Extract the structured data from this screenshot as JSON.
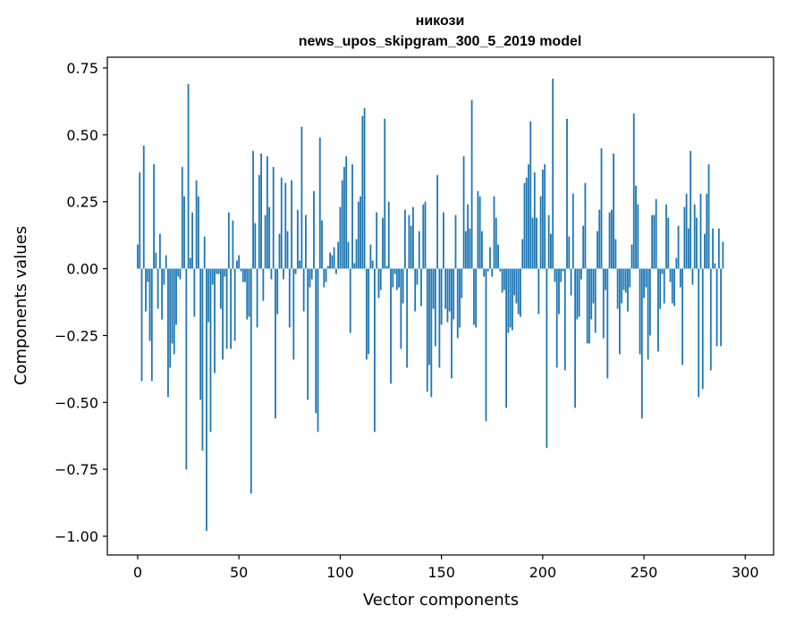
{
  "chart_data": {
    "type": "bar",
    "title": "никози",
    "subtitle": "news_upos_skipgram_300_5_2019 model",
    "xlabel": "Vector components",
    "ylabel": "Components values",
    "xlim": [
      -15,
      314
    ],
    "ylim": [
      -1.07,
      0.79
    ],
    "xticks": [
      0,
      50,
      100,
      150,
      200,
      250,
      300
    ],
    "xtick_labels": [
      "0",
      "50",
      "100",
      "150",
      "200",
      "250",
      "300"
    ],
    "yticks": [
      -1.0,
      -0.75,
      -0.5,
      -0.25,
      0.0,
      0.25,
      0.5,
      0.75
    ],
    "ytick_labels": [
      "−1.00",
      "−0.75",
      "−0.50",
      "−0.25",
      "0.00",
      "0.25",
      "0.50",
      "0.75"
    ],
    "grid": false,
    "color": "#1f77b4",
    "values": [
      0.09,
      0.36,
      -0.42,
      0.46,
      -0.16,
      -0.05,
      -0.27,
      -0.42,
      0.39,
      0.06,
      -0.15,
      0.13,
      -0.19,
      -0.06,
      0.05,
      -0.48,
      -0.37,
      -0.28,
      -0.32,
      -0.21,
      -0.03,
      -0.04,
      0.38,
      0.27,
      -0.75,
      0.69,
      0.04,
      0.21,
      -0.18,
      0.33,
      0.27,
      -0.49,
      -0.68,
      0.12,
      -0.98,
      -0.2,
      -0.61,
      -0.06,
      -0.39,
      -0.02,
      -0.02,
      -0.15,
      -0.34,
      -0.03,
      -0.3,
      0.21,
      -0.3,
      0.18,
      -0.27,
      0.03,
      0.05,
      -0.01,
      -0.05,
      -0.05,
      -0.19,
      -0.18,
      -0.84,
      0.44,
      0.17,
      -0.22,
      0.35,
      0.43,
      -0.12,
      0.2,
      0.42,
      0.23,
      -0.04,
      0.38,
      -0.56,
      -0.17,
      0.13,
      0.34,
      -0.04,
      0.32,
      0.14,
      -0.22,
      0.33,
      -0.34,
      -0.02,
      0.22,
      0.03,
      0.53,
      -0.16,
      0.2,
      -0.49,
      -0.07,
      -0.04,
      0.29,
      -0.54,
      -0.61,
      0.49,
      0.18,
      -0.07,
      -0.05,
      0.01,
      0.06,
      0.05,
      0.08,
      -0.02,
      0.1,
      0.23,
      0.33,
      0.38,
      0.42,
      0.1,
      -0.24,
      0.39,
      0.02,
      0.11,
      0.25,
      0.27,
      0.57,
      0.6,
      -0.34,
      -0.32,
      0.09,
      0.03,
      -0.61,
      0.21,
      -0.11,
      -0.08,
      0.19,
      0.56,
      0.01,
      0.25,
      -0.43,
      -0.07,
      -0.02,
      -0.08,
      -0.07,
      -0.3,
      -0.13,
      0.22,
      -0.37,
      0.2,
      0.16,
      0.23,
      -0.16,
      -0.06,
      0.14,
      -0.14,
      0.24,
      0.25,
      -0.46,
      -0.36,
      -0.48,
      -0.15,
      -0.29,
      0.35,
      -0.37,
      -0.21,
      0.21,
      -0.15,
      -0.2,
      -0.16,
      -0.41,
      -0.19,
      0.2,
      -0.26,
      -0.22,
      -0.11,
      0.42,
      0.14,
      0.24,
      0.15,
      0.63,
      -0.21,
      -0.22,
      0.29,
      0.27,
      0.14,
      -0.03,
      -0.57,
      -0.01,
      0.08,
      -0.03,
      0.27,
      0.19,
      0.09,
      -0.01,
      -0.09,
      -0.08,
      -0.52,
      -0.24,
      -0.22,
      -0.23,
      -0.1,
      -0.13,
      -0.17,
      -0.18,
      0.11,
      0.32,
      0.34,
      0.39,
      0.55,
      0.19,
      0.36,
      0.19,
      -0.17,
      0.27,
      0.37,
      0.39,
      -0.67,
      0.2,
      0.13,
      0.71,
      -0.05,
      -0.37,
      -0.17,
      -0.05,
      -0.01,
      -0.38,
      0.56,
      0.12,
      -0.1,
      0.28,
      -0.52,
      -0.19,
      -0.18,
      -0.04,
      0.16,
      0.32,
      -0.28,
      -0.28,
      -0.19,
      -0.13,
      -0.24,
      0.14,
      0.22,
      0.45,
      -0.26,
      -0.08,
      -0.41,
      0.21,
      0.22,
      0.43,
      0.11,
      -0.15,
      -0.32,
      -0.13,
      -0.08,
      -0.09,
      -0.16,
      -0.07,
      0.09,
      0.58,
      0.31,
      0.24,
      -0.32,
      -0.56,
      -0.11,
      -0.07,
      -0.34,
      -0.25,
      0.2,
      0.2,
      0.26,
      -0.31,
      -0.15,
      -0.02,
      -0.13,
      0.24,
      0.19,
      -0.05,
      -0.13,
      -0.14,
      0.04,
      0.16,
      -0.07,
      -0.36,
      0.23,
      0.28,
      0.15,
      0.44,
      -0.06,
      0.24,
      0.19,
      -0.48,
      0.28,
      -0.45,
      0.13,
      0.28,
      0.39,
      -0.38,
      0.15,
      0.02,
      -0.29,
      0.15,
      -0.29,
      0.1
    ]
  }
}
